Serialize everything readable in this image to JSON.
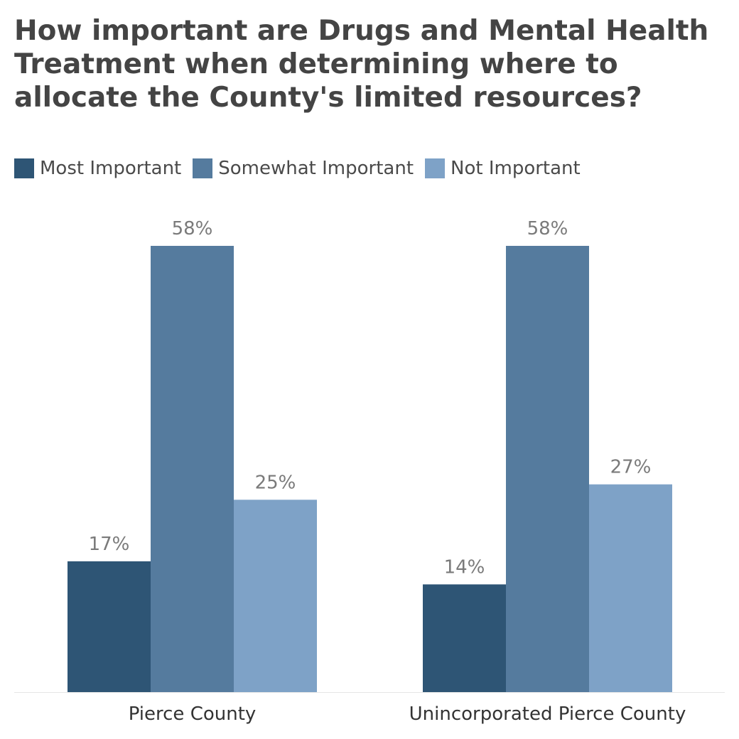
{
  "chart_data": {
    "type": "bar",
    "title": "How important are Drugs and Mental Health Treatment when determining where to allocate the County's limited resources?",
    "categories": [
      "Pierce County",
      "Unincorporated Pierce County"
    ],
    "series": [
      {
        "name": "Most Important",
        "color": "#2e5575",
        "values": [
          17,
          14
        ],
        "labels": [
          "17%",
          "14%"
        ]
      },
      {
        "name": "Somewhat Important",
        "color": "#557b9e",
        "values": [
          58,
          58
        ],
        "labels": [
          "58%",
          "58%"
        ]
      },
      {
        "name": "Not Important",
        "color": "#7ea2c7",
        "values": [
          25,
          27
        ],
        "labels": [
          "25%",
          "27%"
        ]
      }
    ],
    "xlabel": "",
    "ylabel": "",
    "ylim": [
      0,
      58
    ],
    "grid": false,
    "legend_position": "top-left"
  }
}
